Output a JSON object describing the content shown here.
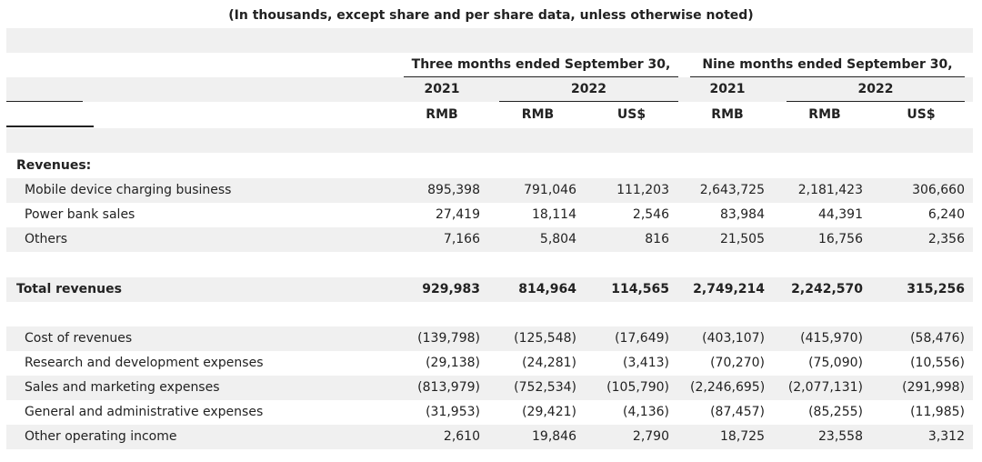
{
  "caption": "(In thousands, except share and per share data, unless otherwise noted)",
  "header": {
    "period_three": "Three months ended September 30,",
    "period_nine": "Nine months ended September 30,",
    "years": [
      "2021",
      "2022",
      "2021",
      "2022"
    ],
    "currencies": [
      "RMB",
      "RMB",
      "US$",
      "RMB",
      "RMB",
      "US$"
    ]
  },
  "sections": {
    "revenues_heading": "Revenues:",
    "revenues": [
      {
        "label": "Mobile device charging business",
        "values": [
          "895,398",
          "791,046",
          "111,203",
          "2,643,725",
          "2,181,423",
          "306,660"
        ]
      },
      {
        "label": "Power bank sales",
        "values": [
          "27,419",
          "18,114",
          "2,546",
          "83,984",
          "44,391",
          "6,240"
        ]
      },
      {
        "label": "Others",
        "values": [
          "7,166",
          "5,804",
          "816",
          "21,505",
          "16,756",
          "2,356"
        ]
      }
    ],
    "total_revenues": {
      "label": "Total revenues",
      "values": [
        "929,983",
        "814,964",
        "114,565",
        "2,749,214",
        "2,242,570",
        "315,256"
      ]
    },
    "expenses": [
      {
        "label": "Cost of revenues",
        "values": [
          "(139,798)",
          "(125,548)",
          "(17,649)",
          "(403,107)",
          "(415,970)",
          "(58,476)"
        ]
      },
      {
        "label": "Research and development expenses",
        "values": [
          "(29,138)",
          "(24,281)",
          "(3,413)",
          "(70,270)",
          "(75,090)",
          "(10,556)"
        ]
      },
      {
        "label": "Sales and marketing expenses",
        "values": [
          "(813,979)",
          "(752,534)",
          "(105,790)",
          "(2,246,695)",
          "(2,077,131)",
          "(291,998)"
        ]
      },
      {
        "label": "General and administrative expenses",
        "values": [
          "(31,953)",
          "(29,421)",
          "(4,136)",
          "(87,457)",
          "(85,255)",
          "(11,985)"
        ]
      },
      {
        "label": "Other operating income",
        "values": [
          "2,610",
          "19,846",
          "2,790",
          "18,725",
          "23,558",
          "3,312"
        ]
      }
    ]
  }
}
